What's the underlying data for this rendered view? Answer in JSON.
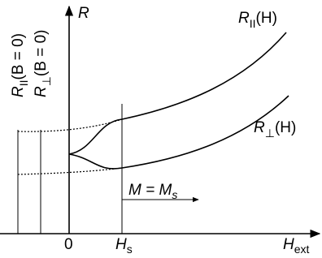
{
  "axes": {
    "y_label": "R",
    "x_label": {
      "main": "H",
      "sub": "ext"
    },
    "origin": "0",
    "hs": {
      "main": "H",
      "sub": "s"
    }
  },
  "curves": {
    "parallel": {
      "main": "R",
      "sub": "II",
      "rest": "(H)"
    },
    "perp": {
      "main": "R",
      "sub": "⊥",
      "rest": "(H)"
    }
  },
  "zero_field": {
    "parallel": {
      "main": "R",
      "sub": "II",
      "rest": "(B = 0)"
    },
    "perp": {
      "main": "R",
      "sub": "⊥",
      "rest": "(B = 0)"
    }
  },
  "annotation": {
    "main": "M = M",
    "sub": "s"
  }
}
